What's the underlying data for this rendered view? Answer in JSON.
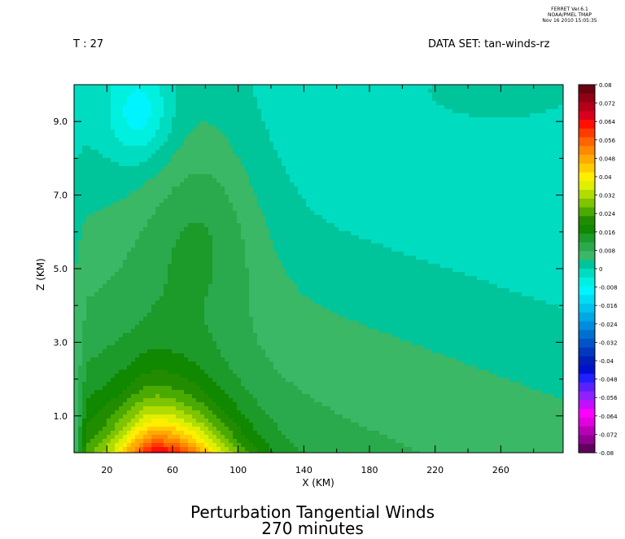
{
  "header": {
    "program_lines": [
      "FERRET Ver.6.1",
      "NOAA/PMEL TMAP",
      "Nov 16 2010 15:05:35"
    ],
    "time_label": "T : 27",
    "dataset_label": "DATA SET: tan-winds-rz"
  },
  "chart_data": {
    "type": "heatmap",
    "title": "Perturbation Tangential Winds",
    "subtitle": "270 minutes",
    "xlabel": "X (KM)",
    "ylabel": "Z (KM)",
    "xlim": [
      0,
      298
    ],
    "ylim": [
      0,
      10
    ],
    "x_tick_labels": [
      "20",
      "60",
      "100",
      "140",
      "180",
      "220",
      "260"
    ],
    "x_ticks": [
      20,
      60,
      100,
      140,
      180,
      220,
      260
    ],
    "x_minor_ticks": [
      40,
      80,
      120,
      160,
      200,
      240,
      280
    ],
    "y_tick_labels": [
      "1.0",
      "3.0",
      "5.0",
      "7.0",
      "9.0"
    ],
    "y_ticks": [
      1,
      3,
      5,
      7,
      9
    ],
    "y_minor_ticks": [
      2,
      4,
      6,
      8
    ],
    "colorbar": {
      "min": -0.08,
      "max": 0.08,
      "step": 0.004,
      "labels": [
        "0.08",
        "0.072",
        "0.064",
        "0.056",
        "0.048",
        "0.04",
        "0.032",
        "0.024",
        "0.016",
        "0.008",
        "0",
        "-0.008",
        "-0.016",
        "-0.024",
        "-0.032",
        "-0.04",
        "-0.048",
        "-0.056",
        "-0.064",
        "-0.072",
        "-0.08"
      ],
      "colors_top_to_bottom": [
        "#6b0010",
        "#900014",
        "#b40018",
        "#d8001c",
        "#ff1000",
        "#ff3a00",
        "#ff6400",
        "#ff8800",
        "#ffaa00",
        "#ffcc00",
        "#ffee00",
        "#e0ee00",
        "#b0dc00",
        "#7ec400",
        "#4aaa00",
        "#228c00",
        "#108800",
        "#1c9a2a",
        "#2aaa4c",
        "#3ab866",
        "#00c49a",
        "#00dcc0",
        "#00f0e0",
        "#00f4ff",
        "#00dcf4",
        "#00c4ec",
        "#00a8e4",
        "#008cdc",
        "#0070d0",
        "#0054c8",
        "#0038c0",
        "#0020b8",
        "#0010d0",
        "#2020ff",
        "#5a20ff",
        "#9020ff",
        "#c010ff",
        "#ff00ff",
        "#e000e0",
        "#b800b8",
        "#900090",
        "#600060"
      ]
    },
    "field_params": {
      "jet_center_x": 52,
      "jet_peak_value": 0.05,
      "background_upper_value": -0.006
    }
  }
}
